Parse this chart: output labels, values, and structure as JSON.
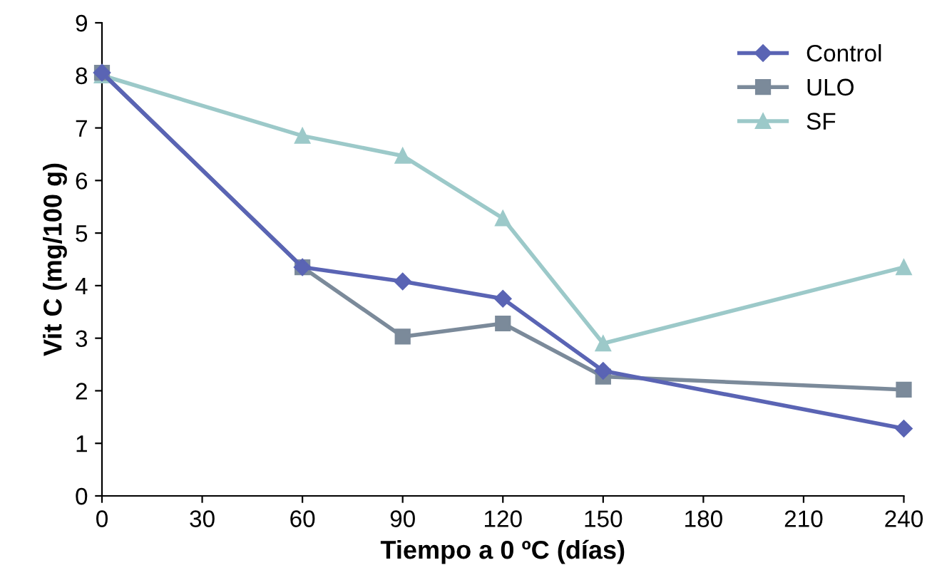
{
  "chart_data": {
    "type": "line",
    "xlabel": "Tiempo a 0 ºC (días)",
    "ylabel": "Vit C (mg/100 g)",
    "x": [
      0,
      60,
      90,
      120,
      150,
      240
    ],
    "series": [
      {
        "name": "Control",
        "color": "#5a64b4",
        "marker": "diamond",
        "values": [
          8.05,
          4.35,
          4.08,
          3.75,
          2.38,
          1.28
        ]
      },
      {
        "name": "ULO",
        "color": "#7b8a9a",
        "marker": "square",
        "values": [
          8.05,
          4.35,
          3.03,
          3.28,
          2.27,
          2.02
        ]
      },
      {
        "name": "SF",
        "color": "#9cc9c9",
        "marker": "triangle",
        "values": [
          8.0,
          6.85,
          6.47,
          5.28,
          2.9,
          4.35
        ]
      }
    ],
    "xlim": [
      0,
      240
    ],
    "xticks": [
      0,
      30,
      60,
      90,
      120,
      150,
      180,
      210,
      240
    ],
    "ylim": [
      0,
      9
    ],
    "yticks": [
      0,
      1,
      2,
      3,
      4,
      5,
      6,
      7,
      8,
      9
    ],
    "grid": false,
    "legend": "top right",
    "line_style": "solid"
  }
}
